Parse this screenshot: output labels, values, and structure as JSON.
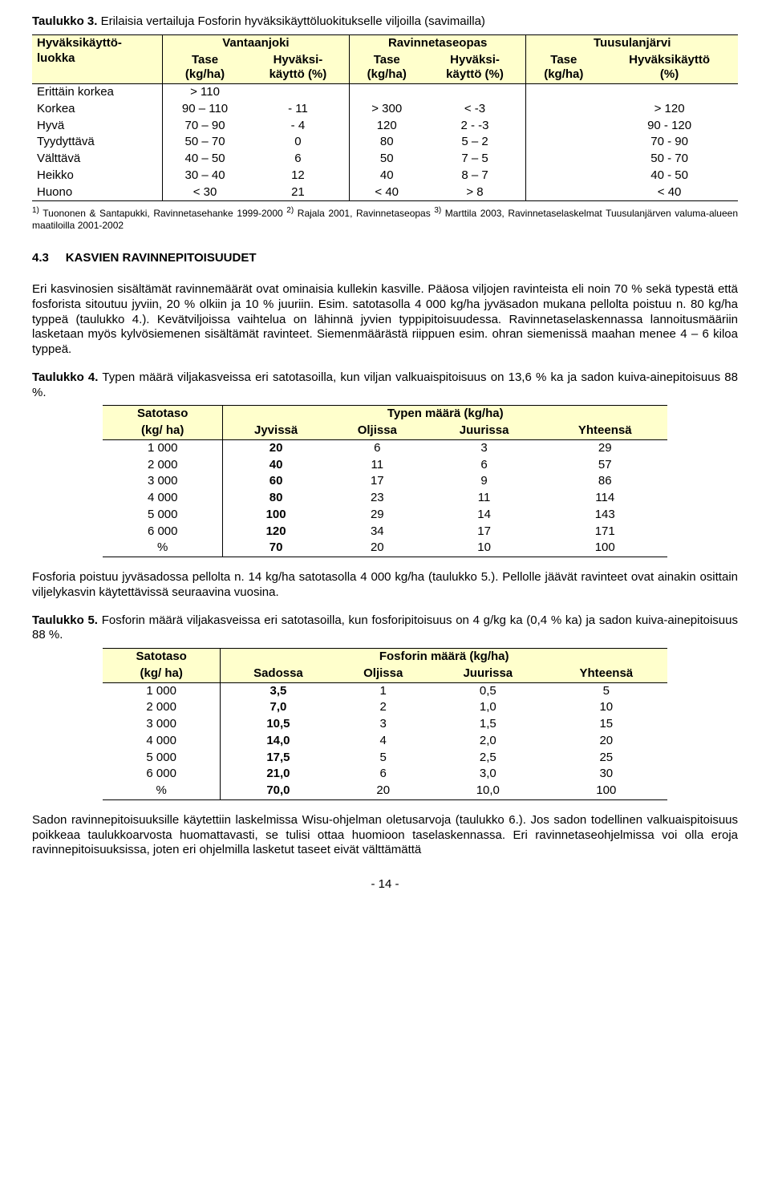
{
  "t3": {
    "caption_prefix": "Taulukko 3.",
    "caption": "Erilaisia vertailuja Fosforin hyväksikäyttöluokitukselle viljoilla (savimailla)",
    "col0_h1": "Hyväksikäyttö-",
    "col0_h2": "luokka",
    "groups": [
      "Vantaanjoki",
      "Ravinnetaseopas",
      "Tuusulanjärvi"
    ],
    "sub_h1": [
      "Tase",
      "Hyväksi-",
      "Tase",
      "Hyväksi-",
      "Tase",
      "Hyväksikäyttö"
    ],
    "sub_h2": [
      "(kg/ha)",
      "käyttö (%)",
      "(kg/ha)",
      "käyttö (%)",
      "(kg/ha)",
      "(%)"
    ],
    "rows": [
      {
        "label": "Erittäin korkea",
        "v": [
          "> 110",
          "",
          "",
          "",
          "",
          ""
        ]
      },
      {
        "label": "Korkea",
        "v": [
          "90 – 110",
          "- 11",
          "> 300",
          "< -3",
          "",
          "> 120"
        ]
      },
      {
        "label": "Hyvä",
        "v": [
          "70 – 90",
          "- 4",
          "120",
          "2 - -3",
          "",
          "90 - 120"
        ]
      },
      {
        "label": "Tyydyttävä",
        "v": [
          "50 – 70",
          "0",
          "80",
          "5 – 2",
          "",
          "70 - 90"
        ]
      },
      {
        "label": "Välttävä",
        "v": [
          "40 – 50",
          "6",
          "50",
          "7 – 5",
          "",
          "50 - 70"
        ]
      },
      {
        "label": "Heikko",
        "v": [
          "30 – 40",
          "12",
          "40",
          "8 – 7",
          "",
          "40 - 50"
        ]
      },
      {
        "label": "Huono",
        "v": [
          "< 30",
          "21",
          "< 40",
          "> 8",
          "",
          "< 40"
        ]
      }
    ],
    "footnote": "1) Tuononen & Santapukki, Ravinnetasehanke 1999-2000 2) Rajala 2001, Ravinnetaseopas 3) Marttila 2003, Ravinnetaselaskelmat Tuusulanjärven valuma-alueen maatiloilla 2001-2002"
  },
  "section": {
    "num": "4.3",
    "title": "KASVIEN RAVINNEPITOISUUDET"
  },
  "para1": "Eri kasvinosien sisältämät ravinnemäärät ovat ominaisia kullekin kasville. Pääosa viljojen ravinteista eli noin 70 % sekä typestä että fosforista sitoutuu jyviin, 20 % olkiin ja 10 % juuriin. Esim. satotasolla 4 000 kg/ha jyväsadon mukana pellolta poistuu n. 80 kg/ha typpeä (taulukko 4.). Kevätviljoissa vaihtelua on lähinnä jyvien typpipitoisuudessa. Ravinnetaselaskennassa lannoitusmääriin lasketaan myös kylvösiemenen sisältämät ravinteet. Siemenmäärästä riippuen esim. ohran siemenissä maahan menee 4 – 6 kiloa typpeä.",
  "t4": {
    "caption_prefix": "Taulukko 4.",
    "caption": "Typen määrä viljakasveissa eri satotasoilla, kun viljan valkuaispitoisuus on 13,6 % ka ja sadon kuiva-ainepitoisuus 88 %.",
    "h_left1": "Satotaso",
    "h_left2": "(kg/ ha)",
    "h_group": "Typen määrä (kg/ha)",
    "cols": [
      "Jyvissä",
      "Oljissa",
      "Juurissa",
      "Yhteensä"
    ],
    "rows": [
      [
        "1 000",
        "20",
        "6",
        "3",
        "29"
      ],
      [
        "2 000",
        "40",
        "11",
        "6",
        "57"
      ],
      [
        "3 000",
        "60",
        "17",
        "9",
        "86"
      ],
      [
        "4 000",
        "80",
        "23",
        "11",
        "114"
      ],
      [
        "5 000",
        "100",
        "29",
        "14",
        "143"
      ],
      [
        "6 000",
        "120",
        "34",
        "17",
        "171"
      ],
      [
        "%",
        "70",
        "20",
        "10",
        "100"
      ]
    ]
  },
  "para2": "Fosforia poistuu jyväsadossa pellolta n. 14 kg/ha satotasolla 4 000 kg/ha (taulukko 5.). Pellolle jäävät ravinteet ovat ainakin osittain viljelykasvin käytettävissä seuraavina vuosina.",
  "t5": {
    "caption_prefix": "Taulukko 5.",
    "caption": "Fosforin määrä viljakasveissa eri satotasoilla, kun fosforipitoisuus on 4 g/kg ka (0,4 % ka) ja sadon kuiva-ainepitoisuus 88 %.",
    "h_left1": "Satotaso",
    "h_left2": "(kg/ ha)",
    "h_group": "Fosforin määrä (kg/ha)",
    "cols": [
      "Sadossa",
      "Oljissa",
      "Juurissa",
      "Yhteensä"
    ],
    "rows": [
      [
        "1 000",
        "3,5",
        "1",
        "0,5",
        "5"
      ],
      [
        "2 000",
        "7,0",
        "2",
        "1,0",
        "10"
      ],
      [
        "3 000",
        "10,5",
        "3",
        "1,5",
        "15"
      ],
      [
        "4 000",
        "14,0",
        "4",
        "2,0",
        "20"
      ],
      [
        "5 000",
        "17,5",
        "5",
        "2,5",
        "25"
      ],
      [
        "6 000",
        "21,0",
        "6",
        "3,0",
        "30"
      ],
      [
        "%",
        "70,0",
        "20",
        "10,0",
        "100"
      ]
    ]
  },
  "para3": "Sadon ravinnepitoisuuksille käytettiin laskelmissa Wisu-ohjelman oletusarvoja (taulukko 6.). Jos sadon todellinen valkuaispitoisuus poikkeaa taulukkoarvosta huomattavasti, se tulisi ottaa huomioon taselaskennassa. Eri ravinnetaseohjelmissa voi olla eroja ravinnepitoisuuksissa, joten eri ohjelmilla lasketut taseet eivät välttämättä",
  "page_number": "- 14 -"
}
